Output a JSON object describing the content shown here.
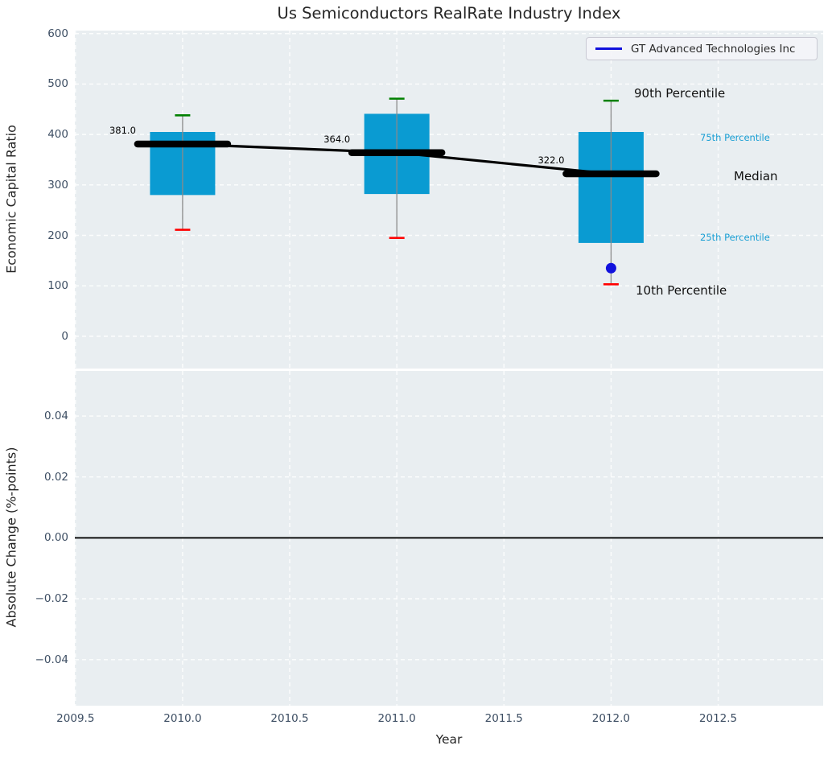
{
  "title": "Us Semiconductors RealRate Industry Index",
  "legend": {
    "label": "GT Advanced Technologies Inc"
  },
  "annotations": {
    "p90": "90th Percentile",
    "p75": "75th Percentile",
    "median": "Median",
    "p25": "25th Percentile",
    "p10": "10th Percentile"
  },
  "axis_labels": {
    "top_y": "Economic Capital Ratio",
    "bottom_y": "Absolute Change (%-points)",
    "x": "Year"
  },
  "colors": {
    "axes_bg": "#e9eef1",
    "grid": "#ffffff",
    "box_fill": "#0a9bd2",
    "cap_high": "#008000",
    "cap_low": "#ff0000",
    "whisker": "#8a8a8a",
    "median_line": "#000000",
    "company_blue": "#1111dd",
    "cyan_text": "#1a9fd4",
    "tick_text": "#3d4e63",
    "zero_line": "#000000"
  },
  "chart_data": [
    {
      "type": "boxplot",
      "title": "Us Semiconductors RealRate Industry Index",
      "ylabel": "Economic Capital Ratio",
      "xlabel": "Year",
      "ylim": [
        -64,
        606
      ],
      "xlim": [
        2009.497,
        2012.99
      ],
      "grid": true,
      "legend_position": "upper right",
      "yticks": [
        {
          "v": 0,
          "label": "0"
        },
        {
          "v": 100,
          "label": "100"
        },
        {
          "v": 200,
          "label": "200"
        },
        {
          "v": 300,
          "label": "300"
        },
        {
          "v": 400,
          "label": "400"
        },
        {
          "v": 500,
          "label": "500"
        },
        {
          "v": 600,
          "label": "600"
        }
      ],
      "xticks": [
        {
          "v": 2009.5,
          "label": "2009.5"
        },
        {
          "v": 2010.0,
          "label": "2010.0"
        },
        {
          "v": 2010.5,
          "label": "2010.5"
        },
        {
          "v": 2011.0,
          "label": "2011.0"
        },
        {
          "v": 2011.5,
          "label": "2011.5"
        },
        {
          "v": 2012.0,
          "label": "2012.0"
        },
        {
          "v": 2012.5,
          "label": "2012.5"
        }
      ],
      "boxes": [
        {
          "year": 2010,
          "p10": 211,
          "p25": 280,
          "median": 381,
          "p75": 405,
          "p90": 438,
          "median_label": "381.0"
        },
        {
          "year": 2011,
          "p10": 195,
          "p25": 282,
          "median": 364,
          "p75": 441,
          "p90": 471,
          "median_label": "364.0"
        },
        {
          "year": 2012,
          "p10": 103,
          "p25": 185,
          "median": 322,
          "p75": 405,
          "p90": 467,
          "median_label": "322.0"
        }
      ],
      "median_series": {
        "x": [
          2010,
          2011,
          2012
        ],
        "y": [
          381,
          364,
          322
        ]
      },
      "company_series": {
        "name": "GT Advanced Technologies Inc",
        "x": [
          2012
        ],
        "y": [
          135
        ]
      }
    },
    {
      "type": "line",
      "ylabel": "Absolute Change (%-points)",
      "xlabel": "Year",
      "ylim": [
        -0.0551,
        0.0548
      ],
      "xlim": [
        2009.497,
        2012.99
      ],
      "grid": true,
      "zero_line": 0.0,
      "series": [],
      "yticks": [
        {
          "v": 0.04,
          "label": "0.04"
        },
        {
          "v": 0.02,
          "label": "0.02"
        },
        {
          "v": 0.0,
          "label": "0.00"
        },
        {
          "v": -0.02,
          "label": "−0.02"
        },
        {
          "v": -0.04,
          "label": "−0.04"
        }
      ],
      "xticks": [
        {
          "v": 2009.5,
          "label": "2009.5"
        },
        {
          "v": 2010.0,
          "label": "2010.0"
        },
        {
          "v": 2010.5,
          "label": "2010.5"
        },
        {
          "v": 2011.0,
          "label": "2011.0"
        },
        {
          "v": 2011.5,
          "label": "2011.5"
        },
        {
          "v": 2012.0,
          "label": "2012.0"
        },
        {
          "v": 2012.5,
          "label": "2012.5"
        }
      ]
    }
  ]
}
